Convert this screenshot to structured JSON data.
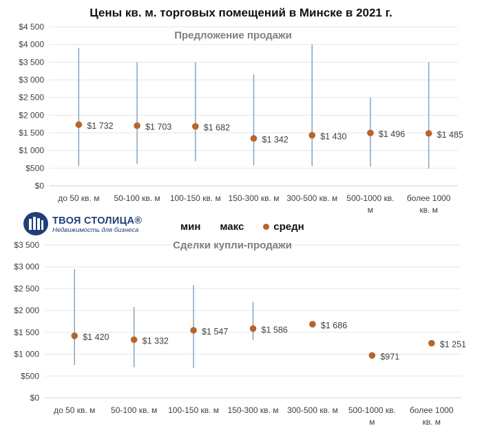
{
  "title": "Цены кв. м. торговых помещений в Минске в 2021 г.",
  "logo": {
    "name": "ТВОЯ СТОЛИЦА®",
    "tagline": "Недвижимость для бизнеса"
  },
  "legend": [
    {
      "label": "мин",
      "marker": "none"
    },
    {
      "label": "макс",
      "marker": "none"
    },
    {
      "label": "средн",
      "marker": "dot",
      "color": "#b8642a"
    }
  ],
  "colors": {
    "range_line": "#7f9db9",
    "avg_marker": "#b8642a",
    "grid": "#e6e6e6"
  },
  "chart_data": [
    {
      "type": "scatter",
      "subtitle": "Предложение продажи",
      "categories": [
        [
          "до 50 кв. м"
        ],
        [
          "50-100 кв. м"
        ],
        [
          "100-150 кв. м"
        ],
        [
          "150-300 кв. м"
        ],
        [
          "300-500 кв. м"
        ],
        [
          "500-1000 кв.",
          "м"
        ],
        [
          "более 1000",
          "кв. м"
        ]
      ],
      "y_ticks": [
        "$0",
        "$500",
        "$1 000",
        "$1 500",
        "$2 000",
        "$2 500",
        "$3 000",
        "$3 500",
        "$4 000",
        "$4 500"
      ],
      "ylim": [
        0,
        4500
      ],
      "grid": true,
      "series": [
        {
          "name": "мин",
          "values": [
            560,
            620,
            700,
            580,
            560,
            540,
            490
          ]
        },
        {
          "name": "макс",
          "values": [
            3900,
            3500,
            3500,
            3150,
            4000,
            2500,
            3500
          ]
        },
        {
          "name": "средн",
          "values": [
            1732,
            1703,
            1682,
            1342,
            1430,
            1496,
            1485
          ]
        }
      ],
      "data_labels": [
        "$1 732",
        "$1 703",
        "$1 682",
        "$1 342",
        "$1 430",
        "$1 496",
        "$1 485"
      ]
    },
    {
      "type": "scatter",
      "subtitle": "Сделки купли-продажи",
      "categories": [
        [
          "до 50 кв. м"
        ],
        [
          "50-100 кв. м"
        ],
        [
          "100-150 кв. м"
        ],
        [
          "150-300 кв. м"
        ],
        [
          "300-500 кв. м"
        ],
        [
          "500-1000 кв.",
          "м"
        ],
        [
          "более 1000",
          "кв. м"
        ]
      ],
      "y_ticks": [
        "$0",
        "$500",
        "$1 000",
        "$1 500",
        "$2 000",
        "$2 500",
        "$3 000",
        "$3 500"
      ],
      "ylim": [
        0,
        3500
      ],
      "grid": true,
      "series": [
        {
          "name": "мин",
          "values": [
            750,
            700,
            680,
            1320,
            null,
            null,
            null
          ]
        },
        {
          "name": "макс",
          "values": [
            2950,
            2080,
            2580,
            2200,
            null,
            null,
            null
          ]
        },
        {
          "name": "средн",
          "values": [
            1420,
            1332,
            1547,
            1586,
            1686,
            971,
            1251
          ]
        }
      ],
      "data_labels": [
        "$1 420",
        "$1 332",
        "$1 547",
        "$1 586",
        "$1 686",
        "$971",
        "$1 251"
      ]
    }
  ]
}
